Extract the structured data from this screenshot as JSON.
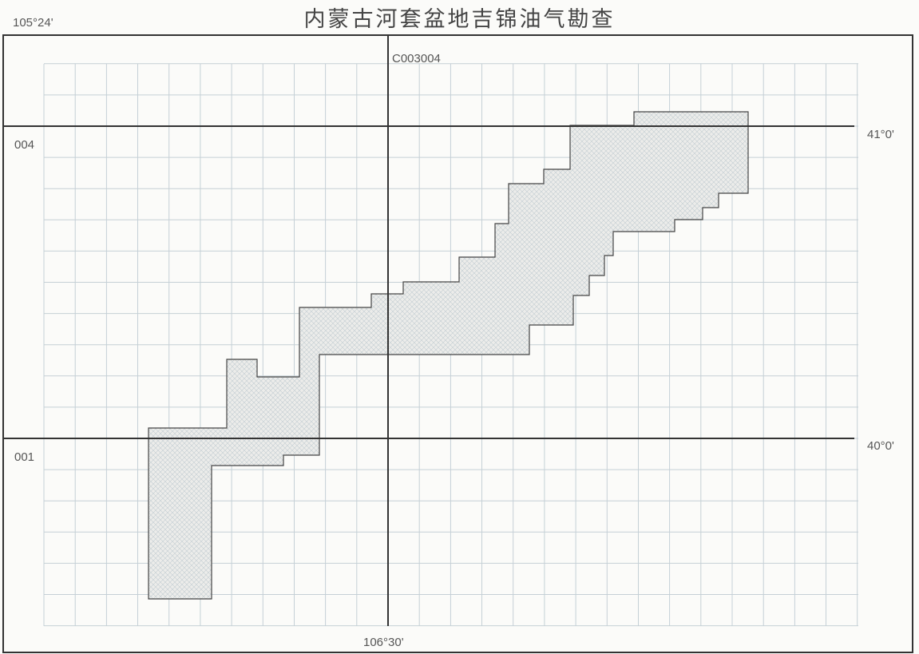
{
  "title": "内蒙古河套盆地吉锦油气勘查",
  "labels": {
    "top_left_longitude": "105°24'",
    "bottom_center_longitude": "106°30'",
    "upper_latitude": "41°0'",
    "lower_latitude": "40°0'",
    "sheet_code": "C003004",
    "upper_row_code": "004",
    "lower_row_code": "001"
  },
  "colors": {
    "frame": "#333333",
    "grid": "#c5d0d6",
    "major_line": "#333333",
    "block_fill": "#ececea",
    "block_hatch": "#b9c4cb",
    "block_outline": "#444444"
  }
}
